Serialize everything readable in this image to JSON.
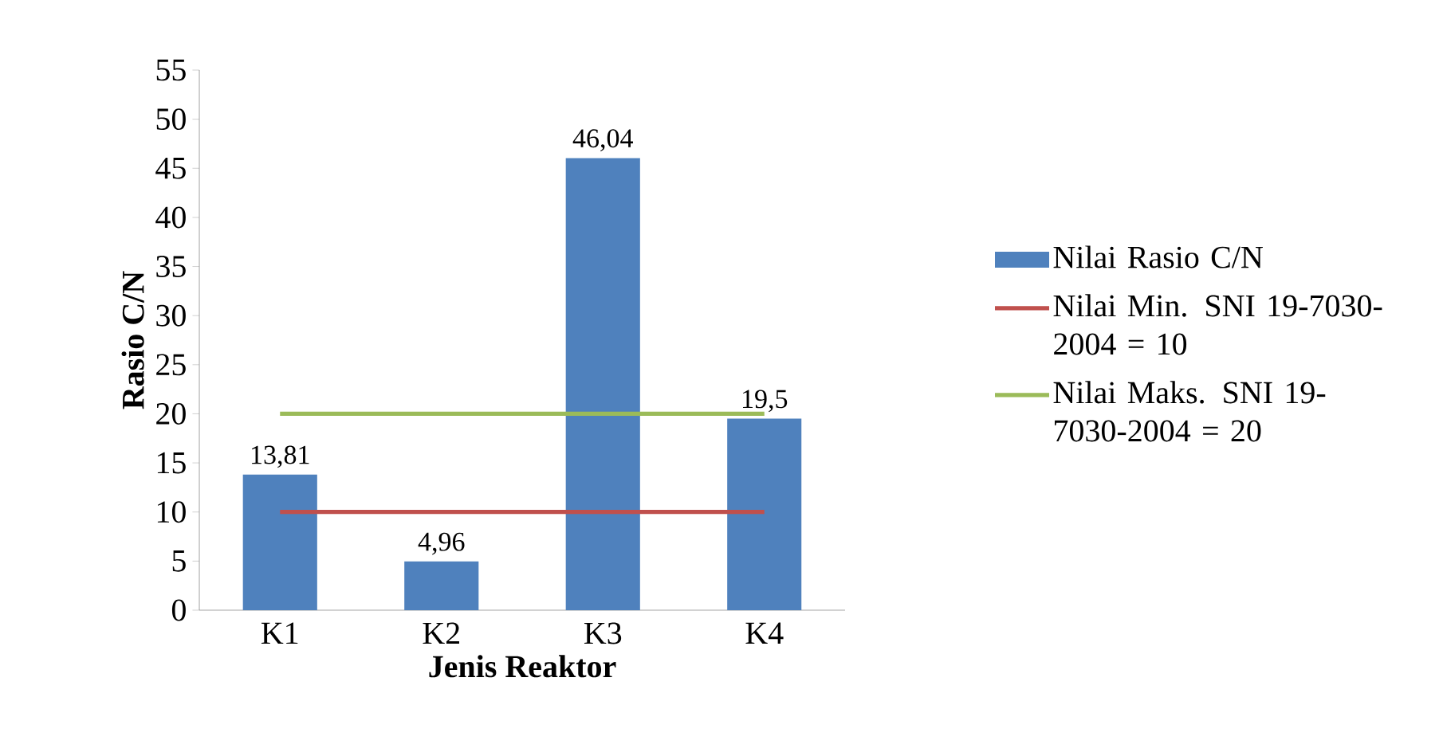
{
  "chart_data": {
    "type": "bar",
    "xlabel": "Jenis Reaktor",
    "ylabel": "Rasio C/N",
    "categories": [
      "K1",
      "K2",
      "K3",
      "K4"
    ],
    "series": [
      {
        "name": "Nilai Rasio C/N",
        "color": "#4f81bd",
        "values": [
          13.81,
          4.96,
          46.04,
          19.5
        ],
        "value_labels": [
          "13,81",
          "4,96",
          "46,04",
          "19,5"
        ]
      },
      {
        "name": "Nilai Min. SNI 19-7030-2004 = 10",
        "type": "line",
        "color": "#c0504d",
        "values": [
          10,
          10,
          10,
          10
        ]
      },
      {
        "name": "Nilai Maks. SNI 19-7030-2004 = 20",
        "type": "line",
        "color": "#9bbb59",
        "values": [
          20,
          20,
          20,
          20
        ]
      }
    ],
    "ylim": [
      0,
      55
    ],
    "yticks": [
      0,
      5,
      10,
      15,
      20,
      25,
      30,
      35,
      40,
      45,
      50,
      55
    ],
    "legend": "right",
    "marker": "none",
    "line_style": "solid"
  }
}
